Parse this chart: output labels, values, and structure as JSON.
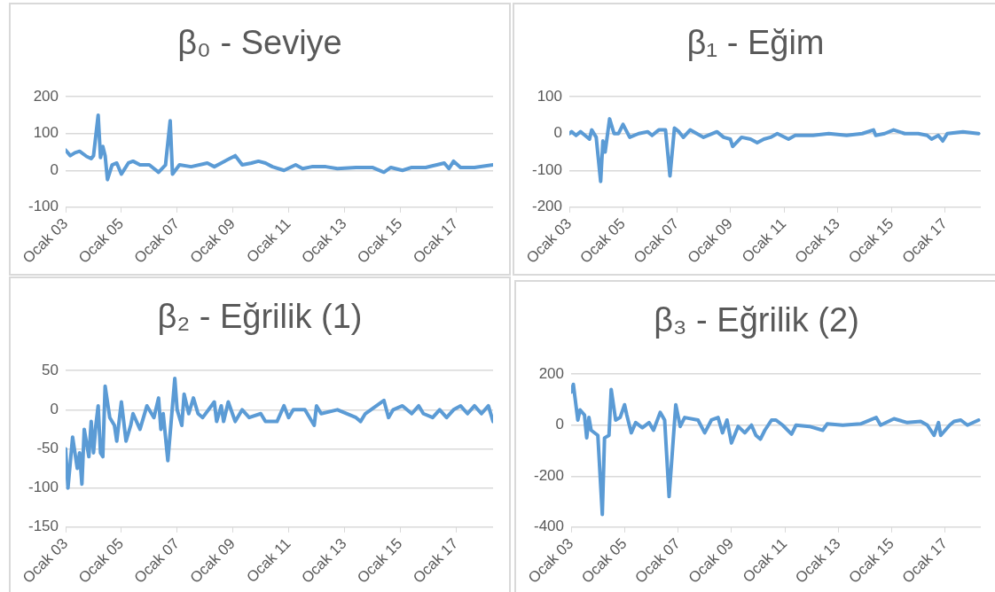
{
  "chart_data": [
    {
      "type": "line",
      "title": "β₀ - Seviye",
      "color": "#5b9bd5",
      "marker": "none",
      "grid": "y",
      "xlim": [
        "2003-01",
        "2018-05"
      ],
      "ylim": [
        -100,
        200
      ],
      "yticks": [
        -100,
        0,
        100,
        200
      ],
      "xticks": [
        {
          "value": "2003-01",
          "label": "Ocak 03"
        },
        {
          "value": "2005-01",
          "label": "Ocak 05"
        },
        {
          "value": "2007-01",
          "label": "Ocak 07"
        },
        {
          "value": "2009-01",
          "label": "Ocak 09"
        },
        {
          "value": "2011-01",
          "label": "Ocak 11"
        },
        {
          "value": "2013-01",
          "label": "Ocak 13"
        },
        {
          "value": "2015-01",
          "label": "Ocak 15"
        },
        {
          "value": "2017-01",
          "label": "Ocak 17"
        }
      ],
      "x": [
        "2003-01",
        "2003-03",
        "2003-05",
        "2003-07",
        "2003-10",
        "2003-12",
        "2004-01",
        "2004-03",
        "2004-04",
        "2004-05",
        "2004-06",
        "2004-07",
        "2004-09",
        "2004-11",
        "2005-01",
        "2005-04",
        "2005-06",
        "2005-09",
        "2006-01",
        "2006-05",
        "2006-08",
        "2006-10",
        "2006-11",
        "2007-02",
        "2007-07",
        "2008-02",
        "2008-05",
        "2008-08",
        "2008-11",
        "2009-02",
        "2009-05",
        "2009-09",
        "2009-12",
        "2010-03",
        "2010-06",
        "2010-11",
        "2011-04",
        "2011-07",
        "2011-11",
        "2012-05",
        "2012-10",
        "2013-06",
        "2014-01",
        "2014-06",
        "2014-09",
        "2015-02",
        "2015-06",
        "2015-12",
        "2016-08",
        "2016-10",
        "2016-12",
        "2017-03",
        "2017-09",
        "2018-05"
      ],
      "values": [
        55,
        40,
        48,
        52,
        38,
        32,
        40,
        150,
        35,
        65,
        40,
        -25,
        15,
        20,
        -10,
        20,
        25,
        15,
        15,
        -5,
        15,
        135,
        -10,
        15,
        10,
        20,
        10,
        20,
        30,
        40,
        15,
        20,
        25,
        20,
        10,
        0,
        15,
        5,
        10,
        10,
        5,
        8,
        8,
        -5,
        8,
        0,
        8,
        8,
        20,
        5,
        25,
        8,
        8,
        15
      ]
    },
    {
      "type": "line",
      "title": "β₁ - Eğim",
      "color": "#5b9bd5",
      "marker": "none",
      "grid": "y",
      "xlim": [
        "2003-01",
        "2018-05"
      ],
      "ylim": [
        -200,
        100
      ],
      "yticks": [
        -200,
        -100,
        0,
        100
      ],
      "xticks": [
        {
          "value": "2003-01",
          "label": "Ocak 03"
        },
        {
          "value": "2005-01",
          "label": "Ocak 05"
        },
        {
          "value": "2007-01",
          "label": "Ocak 07"
        },
        {
          "value": "2009-01",
          "label": "Ocak 09"
        },
        {
          "value": "2011-01",
          "label": "Ocak 11"
        },
        {
          "value": "2013-01",
          "label": "Ocak 13"
        },
        {
          "value": "2015-01",
          "label": "Ocak 15"
        },
        {
          "value": "2017-01",
          "label": "Ocak 17"
        }
      ],
      "x": [
        "2003-01",
        "2003-02",
        "2003-04",
        "2003-06",
        "2003-08",
        "2003-10",
        "2003-11",
        "2004-01",
        "2004-03",
        "2004-04",
        "2004-05",
        "2004-07",
        "2004-09",
        "2004-11",
        "2005-01",
        "2005-04",
        "2005-08",
        "2005-12",
        "2006-02",
        "2006-05",
        "2006-08",
        "2006-10",
        "2006-12",
        "2007-02",
        "2007-04",
        "2007-07",
        "2008-01",
        "2008-07",
        "2008-10",
        "2009-01",
        "2009-02",
        "2009-06",
        "2009-10",
        "2010-01",
        "2010-04",
        "2010-07",
        "2010-10",
        "2011-03",
        "2011-06",
        "2012-02",
        "2012-09",
        "2013-05",
        "2013-12",
        "2014-05",
        "2014-06",
        "2014-10",
        "2015-02",
        "2015-07",
        "2016-01",
        "2016-05",
        "2016-07",
        "2016-10",
        "2016-12",
        "2017-02",
        "2017-09",
        "2018-04"
      ],
      "values": [
        0,
        5,
        -5,
        5,
        -5,
        -15,
        10,
        -10,
        -130,
        -20,
        -50,
        40,
        0,
        0,
        25,
        -10,
        0,
        5,
        -5,
        10,
        10,
        -115,
        15,
        5,
        -10,
        10,
        -10,
        5,
        -10,
        -15,
        -35,
        -10,
        -15,
        -25,
        -15,
        -10,
        0,
        -15,
        -5,
        -5,
        0,
        -5,
        0,
        10,
        -5,
        0,
        10,
        0,
        0,
        -5,
        -15,
        -5,
        -20,
        0,
        5,
        0
      ]
    },
    {
      "type": "line",
      "title": "β₂ - Eğrilik (1)",
      "color": "#5b9bd5",
      "marker": "none",
      "grid": "y",
      "xlim": [
        "2003-01",
        "2018-05"
      ],
      "ylim": [
        -150,
        50
      ],
      "yticks": [
        -150,
        -100,
        -50,
        0,
        50
      ],
      "xticks": [
        {
          "value": "2003-01",
          "label": "Ocak 03"
        },
        {
          "value": "2005-01",
          "label": "Ocak 05"
        },
        {
          "value": "2007-01",
          "label": "Ocak 07"
        },
        {
          "value": "2009-01",
          "label": "Ocak 09"
        },
        {
          "value": "2011-01",
          "label": "Ocak 11"
        },
        {
          "value": "2013-01",
          "label": "Ocak 13"
        },
        {
          "value": "2015-01",
          "label": "Ocak 15"
        },
        {
          "value": "2017-01",
          "label": "Ocak 17"
        }
      ],
      "x": [
        "2003-01",
        "2003-02",
        "2003-04",
        "2003-06",
        "2003-07",
        "2003-08",
        "2003-09",
        "2003-11",
        "2003-12",
        "2004-01",
        "2004-02",
        "2004-03",
        "2004-04",
        "2004-05",
        "2004-06",
        "2004-08",
        "2004-10",
        "2004-11",
        "2005-01",
        "2005-03",
        "2005-05",
        "2005-06",
        "2005-09",
        "2005-12",
        "2006-03",
        "2006-05",
        "2006-06",
        "2006-07",
        "2006-09",
        "2006-12",
        "2007-01",
        "2007-03",
        "2007-04",
        "2007-06",
        "2007-08",
        "2007-10",
        "2007-12",
        "2008-05",
        "2008-06",
        "2008-08",
        "2008-09",
        "2008-11",
        "2009-02",
        "2009-05",
        "2009-08",
        "2010-01",
        "2010-03",
        "2010-08",
        "2010-11",
        "2011-01",
        "2011-03",
        "2011-08",
        "2011-12",
        "2012-01",
        "2012-03",
        "2012-10",
        "2013-06",
        "2013-08",
        "2013-10",
        "2014-06",
        "2014-08",
        "2014-10",
        "2015-02",
        "2015-06",
        "2015-09",
        "2015-11",
        "2016-03",
        "2016-06",
        "2016-09",
        "2016-12",
        "2017-03",
        "2017-06",
        "2017-09",
        "2017-12",
        "2018-03",
        "2018-05"
      ],
      "values": [
        -50,
        -100,
        -35,
        -75,
        -55,
        -95,
        -25,
        -60,
        -15,
        -55,
        -20,
        5,
        -55,
        -60,
        30,
        -10,
        -20,
        -40,
        10,
        -40,
        -20,
        -5,
        -25,
        5,
        -10,
        15,
        -25,
        -5,
        -65,
        40,
        0,
        -20,
        20,
        -5,
        15,
        -5,
        -10,
        10,
        -15,
        5,
        -15,
        10,
        -15,
        0,
        -10,
        -5,
        -15,
        -15,
        5,
        -10,
        0,
        0,
        -20,
        5,
        -5,
        0,
        -10,
        -15,
        -5,
        12,
        -10,
        0,
        5,
        -5,
        5,
        -5,
        -10,
        0,
        -10,
        0,
        5,
        -5,
        5,
        -5,
        5,
        -15
      ]
    },
    {
      "type": "line",
      "title": "β₃ - Eğrilik (2)",
      "color": "#5b9bd5",
      "marker": "none",
      "grid": "y",
      "xlim": [
        "2003-01",
        "2018-05"
      ],
      "ylim": [
        -400,
        200
      ],
      "yticks": [
        -400,
        -200,
        0,
        200
      ],
      "xticks": [
        {
          "value": "2003-01",
          "label": "Ocak 03"
        },
        {
          "value": "2005-01",
          "label": "Ocak 05"
        },
        {
          "value": "2007-01",
          "label": "Ocak 07"
        },
        {
          "value": "2009-01",
          "label": "Ocak 09"
        },
        {
          "value": "2011-01",
          "label": "Ocak 11"
        },
        {
          "value": "2013-01",
          "label": "Ocak 13"
        },
        {
          "value": "2015-01",
          "label": "Ocak 15"
        },
        {
          "value": "2017-01",
          "label": "Ocak 17"
        }
      ],
      "x": [
        "2003-01",
        "2003-02",
        "2003-04",
        "2003-05",
        "2003-07",
        "2003-08",
        "2003-09",
        "2003-10",
        "2004-01",
        "2004-03",
        "2004-04",
        "2004-06",
        "2004-07",
        "2004-09",
        "2004-11",
        "2005-01",
        "2005-02",
        "2005-04",
        "2005-06",
        "2005-09",
        "2005-12",
        "2006-02",
        "2006-05",
        "2006-07",
        "2006-09",
        "2006-12",
        "2007-02",
        "2007-04",
        "2007-10",
        "2008-01",
        "2008-04",
        "2008-07",
        "2008-09",
        "2008-11",
        "2009-01",
        "2009-04",
        "2009-07",
        "2009-10",
        "2009-12",
        "2010-02",
        "2010-04",
        "2010-07",
        "2010-09",
        "2010-12",
        "2011-04",
        "2011-06",
        "2011-12",
        "2012-06",
        "2012-08",
        "2013-03",
        "2013-11",
        "2014-06",
        "2014-08",
        "2015-02",
        "2015-08",
        "2016-02",
        "2016-05",
        "2016-08",
        "2016-10",
        "2016-11",
        "2017-03",
        "2017-05",
        "2017-08",
        "2017-11",
        "2018-04"
      ],
      "values": [
        130,
        160,
        20,
        60,
        40,
        -50,
        30,
        -20,
        -40,
        -350,
        -50,
        -40,
        140,
        20,
        30,
        80,
        40,
        -30,
        10,
        -10,
        10,
        -20,
        50,
        20,
        -280,
        80,
        -5,
        30,
        20,
        -30,
        20,
        30,
        -30,
        20,
        -70,
        -5,
        -30,
        0,
        -40,
        -55,
        -20,
        20,
        20,
        0,
        -35,
        0,
        -5,
        -20,
        5,
        0,
        5,
        30,
        0,
        25,
        10,
        15,
        0,
        -40,
        10,
        -40,
        0,
        15,
        20,
        0,
        20
      ]
    }
  ]
}
